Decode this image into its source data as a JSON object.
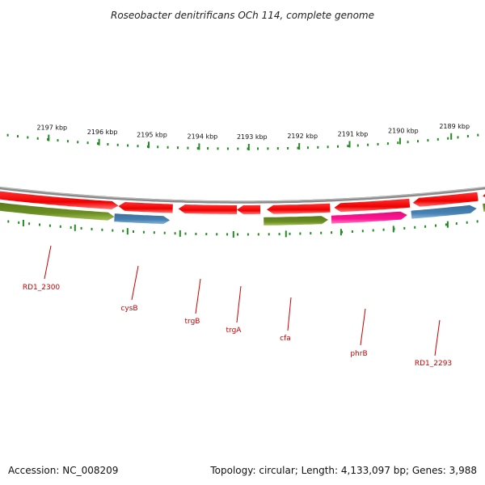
{
  "title": "Roseobacter denitrificans OCh 114, complete genome",
  "footer": {
    "accession": "Accession: NC_008209",
    "summary": "Topology: circular; Length: 4,133,097 bp; Genes: 3,988"
  },
  "ruler_labels": [
    "2197 kbp",
    "2196 kbp",
    "2195 kbp",
    "2194 kbp",
    "2193 kbp",
    "2192 kbp",
    "2191 kbp",
    "2190 kbp",
    "2189 kbp"
  ],
  "genes": [
    {
      "name": "RD1_2300",
      "strand": "reverse",
      "color": "#6b8e23"
    },
    {
      "name": "cysB",
      "strand": "reverse",
      "color": "#4682b4"
    },
    {
      "name": "trgB",
      "strand": "forward",
      "color": "#ff0000"
    },
    {
      "name": "trgA",
      "strand": "forward",
      "color": "#ff0000"
    },
    {
      "name": "cfa",
      "strand": "reverse",
      "color": "#6b8e23"
    },
    {
      "name": "phrB",
      "strand": "reverse",
      "color": "#ff1493"
    },
    {
      "name": "RD1_2293",
      "strand": "reverse",
      "color": "#4682b4"
    }
  ],
  "colors": {
    "backbone": "#888888",
    "cds": "#ff0000",
    "ruler": "#228b22",
    "label": "#cc0000"
  }
}
